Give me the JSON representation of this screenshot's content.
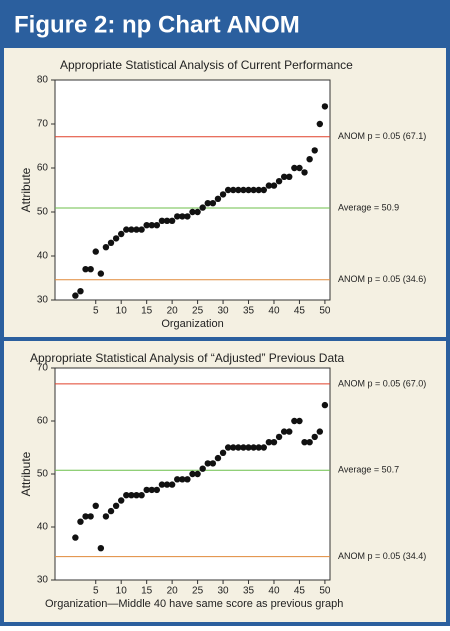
{
  "title": "Figure 2: np Chart ANOM",
  "chart_data": [
    {
      "type": "scatter",
      "title": "Appropriate Statistical Analysis of Current Performance",
      "x_label": "Organization",
      "y_label": "Attribute",
      "xlim": [
        -3,
        51
      ],
      "xticks": [
        5,
        10,
        15,
        20,
        25,
        30,
        35,
        40,
        45,
        50
      ],
      "ylim": [
        30,
        80
      ],
      "yticks": [
        30,
        40,
        50,
        60,
        70,
        80
      ],
      "x": [
        1,
        2,
        3,
        4,
        5,
        6,
        7,
        8,
        9,
        10,
        11,
        12,
        13,
        14,
        15,
        16,
        17,
        18,
        19,
        20,
        21,
        22,
        23,
        24,
        25,
        26,
        27,
        28,
        29,
        30,
        31,
        32,
        33,
        34,
        35,
        36,
        37,
        38,
        39,
        40,
        41,
        42,
        43,
        44,
        45,
        46,
        47,
        48,
        49,
        50
      ],
      "series": [
        {
          "color": "#111111",
          "values": [
            31,
            32,
            37,
            37,
            41,
            36,
            42,
            43,
            44,
            45,
            46,
            46,
            46,
            46,
            47,
            47,
            47,
            48,
            48,
            48,
            49,
            49,
            49,
            50,
            50,
            51,
            52,
            52,
            53,
            54,
            55,
            55,
            55,
            55,
            55,
            55,
            55,
            55,
            56,
            56,
            57,
            58,
            58,
            60,
            60,
            59,
            62,
            64,
            70,
            74
          ]
        }
      ],
      "reference_lines": [
        {
          "value": 67.1,
          "label": "ANOM p = 0.05 (67.1)",
          "color": "#e0402a"
        },
        {
          "value": 50.9,
          "label": "Average = 50.9",
          "color": "#6cbf4a"
        },
        {
          "value": 34.6,
          "label": "ANOM p = 0.05 (34.6)",
          "color": "#e08a3a"
        }
      ]
    },
    {
      "type": "scatter",
      "title": "Appropriate Statistical Analysis of “Adjusted” Previous Data",
      "x_label": "Organization—Middle 40 have same score as previous graph",
      "y_label": "Attribute",
      "xlim": [
        -3,
        51
      ],
      "xticks": [
        5,
        10,
        15,
        20,
        25,
        30,
        35,
        40,
        45,
        50
      ],
      "ylim": [
        30,
        70
      ],
      "yticks": [
        30,
        40,
        50,
        60,
        70
      ],
      "x": [
        1,
        2,
        3,
        4,
        5,
        6,
        7,
        8,
        9,
        10,
        11,
        12,
        13,
        14,
        15,
        16,
        17,
        18,
        19,
        20,
        21,
        22,
        23,
        24,
        25,
        26,
        27,
        28,
        29,
        30,
        31,
        32,
        33,
        34,
        35,
        36,
        37,
        38,
        39,
        40,
        41,
        42,
        43,
        44,
        45,
        46,
        47,
        48,
        49,
        50
      ],
      "series": [
        {
          "color": "#111111",
          "values": [
            38,
            41,
            42,
            42,
            44,
            36,
            42,
            43,
            44,
            45,
            46,
            46,
            46,
            46,
            47,
            47,
            47,
            48,
            48,
            48,
            49,
            49,
            49,
            50,
            50,
            51,
            52,
            52,
            53,
            54,
            55,
            55,
            55,
            55,
            55,
            55,
            55,
            55,
            56,
            56,
            57,
            58,
            58,
            60,
            60,
            56,
            56,
            57,
            58,
            63
          ]
        }
      ],
      "reference_lines": [
        {
          "value": 67.0,
          "label": "ANOM p = 0.05 (67.0)",
          "color": "#e0402a"
        },
        {
          "value": 50.7,
          "label": "Average = 50.7",
          "color": "#6cbf4a"
        },
        {
          "value": 34.4,
          "label": "ANOM p = 0.05 (34.4)",
          "color": "#e08a3a"
        }
      ]
    }
  ]
}
